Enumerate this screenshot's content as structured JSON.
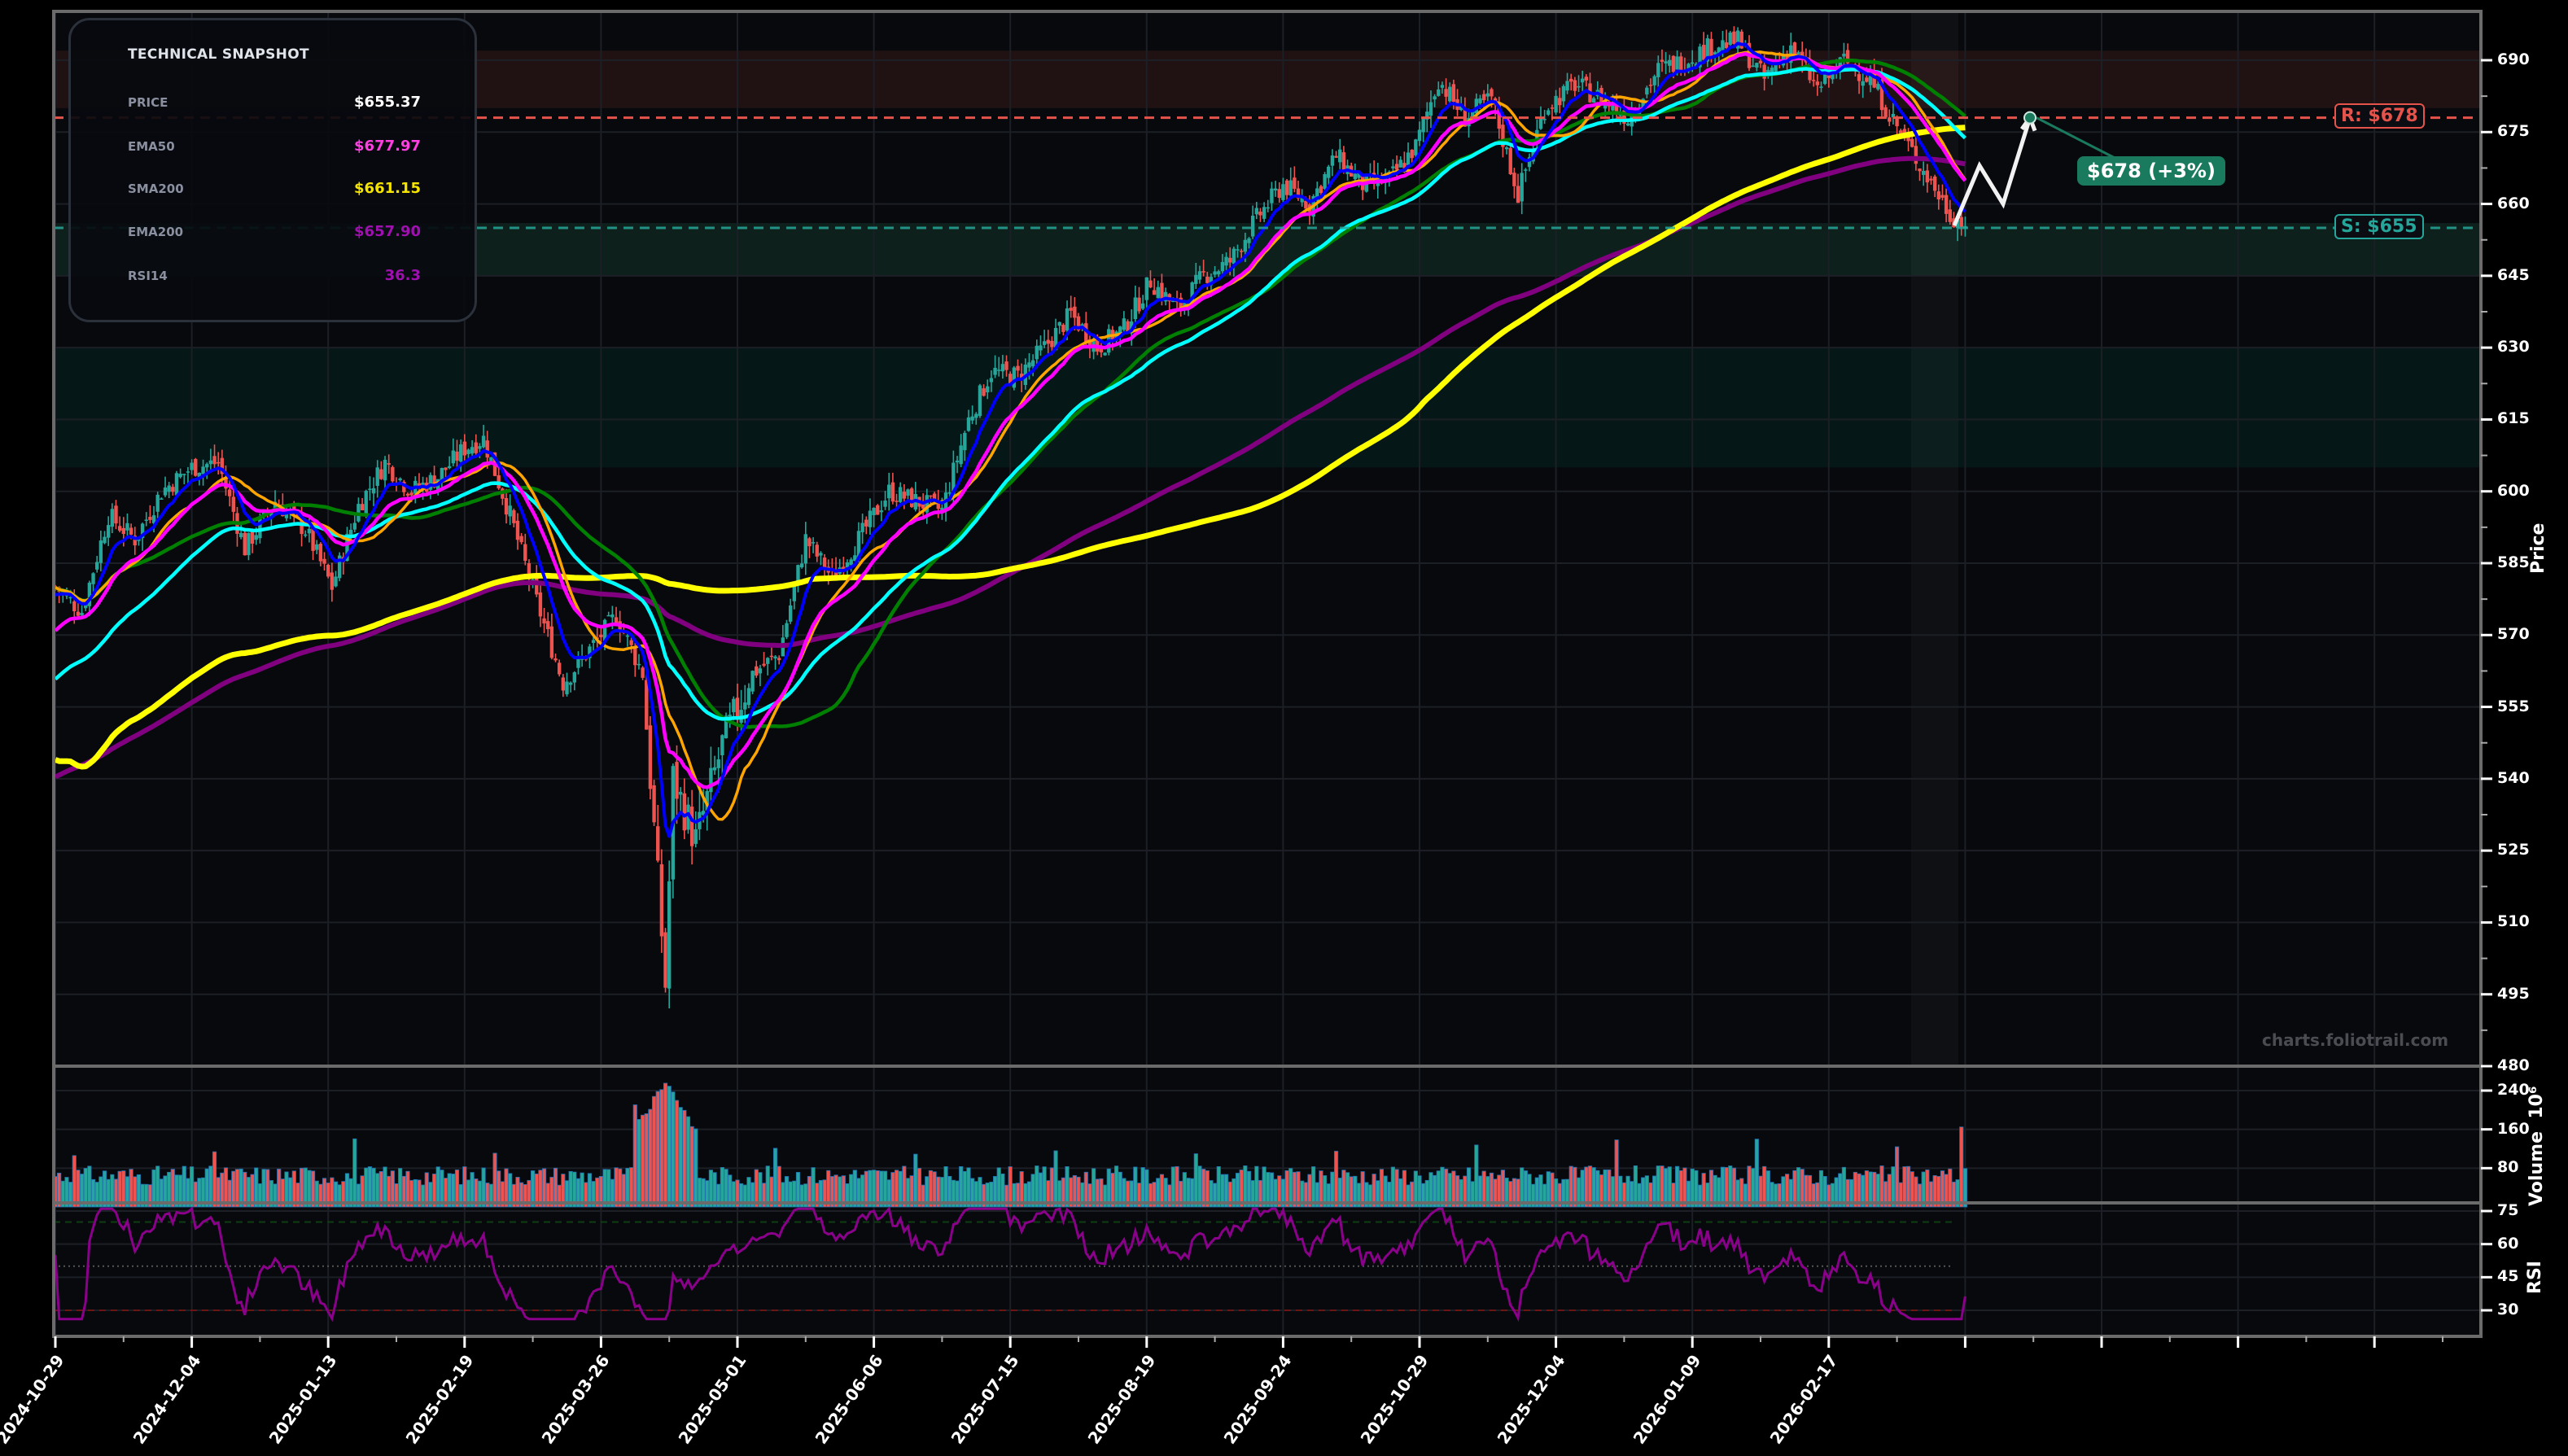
{
  "snapshot": {
    "title": "TECHNICAL SNAPSHOT",
    "rows": [
      {
        "label": "PRICE",
        "value": "$655.37",
        "color": "#ffffff"
      },
      {
        "label": "EMA50",
        "value": "$677.97",
        "color": "#ff40e0"
      },
      {
        "label": "SMA200",
        "value": "$661.15",
        "color": "#f5e400"
      },
      {
        "label": "EMA200",
        "value": "$657.90",
        "color": "#a010b0"
      },
      {
        "label": "RSI14",
        "value": "36.3",
        "color": "#a010b0"
      }
    ]
  },
  "levels": {
    "resistance": {
      "label": "R: $678",
      "value": 678,
      "color": "#e5534b"
    },
    "support": {
      "label": "S: $655",
      "value": 655,
      "color": "#26a69a"
    }
  },
  "target": {
    "label": "$678 (+3%)",
    "value": 678
  },
  "watermark": "charts.foliotrail.com",
  "axes": {
    "price_label": "Price",
    "volume_label": "Volume",
    "volume_exponent": "10⁶",
    "rsi_label": "RSI",
    "price_ticks": [
      "690",
      "675",
      "660",
      "645",
      "630",
      "615",
      "600",
      "585",
      "570",
      "555",
      "540",
      "525",
      "510",
      "495",
      "480"
    ],
    "volume_ticks": [
      "240",
      "160",
      "80"
    ],
    "rsi_ticks": [
      "75",
      "60",
      "45",
      "30"
    ],
    "x_ticks": [
      "2024-10-29",
      "2024-12-04",
      "2025-01-13",
      "2025-02-19",
      "2025-03-26",
      "2025-05-01",
      "2025-06-06",
      "2025-07-15",
      "2025-08-19",
      "2025-09-24",
      "2025-10-29",
      "2025-12-04",
      "2026-01-09",
      "2026-02-17"
    ]
  },
  "colors": {
    "up": "#26a69a",
    "down": "#ef5350",
    "ema9": "#0000ff",
    "ema21": "#ff00ff",
    "sma20": "#ffa500",
    "ema50": "#00ffff",
    "sma50": "#008000",
    "sma200": "#ffff00",
    "ema200": "#800080",
    "rsi": "#8b008b"
  },
  "chart_data": [
    {
      "type": "candlestick",
      "title": "Price",
      "ylabel": "Price",
      "ylim": [
        480,
        697
      ],
      "x_ticks": [
        "2024-10-29",
        "2024-12-04",
        "2025-01-13",
        "2025-02-19",
        "2025-03-26",
        "2025-05-01",
        "2025-06-06",
        "2025-07-15",
        "2025-08-19",
        "2025-09-24",
        "2025-10-29",
        "2025-12-04",
        "2026-01-09",
        "2026-02-17"
      ],
      "close_path": [
        [
          "2024-10-29",
          580
        ],
        [
          "2024-11-05",
          575
        ],
        [
          "2024-11-12",
          595
        ],
        [
          "2024-11-19",
          590
        ],
        [
          "2024-11-26",
          600
        ],
        [
          "2024-12-04",
          605
        ],
        [
          "2024-12-11",
          606
        ],
        [
          "2024-12-18",
          588
        ],
        [
          "2024-12-26",
          598
        ],
        [
          "2025-01-03",
          592
        ],
        [
          "2025-01-10",
          580
        ],
        [
          "2025-01-17",
          597
        ],
        [
          "2025-01-24",
          606
        ],
        [
          "2025-01-31",
          600
        ],
        [
          "2025-02-07",
          603
        ],
        [
          "2025-02-14",
          609
        ],
        [
          "2025-02-19",
          611
        ],
        [
          "2025-02-26",
          595
        ],
        [
          "2025-03-05",
          577
        ],
        [
          "2025-03-12",
          560
        ],
        [
          "2025-03-19",
          567
        ],
        [
          "2025-03-26",
          574
        ],
        [
          "2025-04-02",
          562
        ],
        [
          "2025-04-08",
          497
        ],
        [
          "2025-04-10",
          540
        ],
        [
          "2025-04-16",
          527
        ],
        [
          "2025-04-23",
          547
        ],
        [
          "2025-05-01",
          562
        ],
        [
          "2025-05-08",
          566
        ],
        [
          "2025-05-15",
          590
        ],
        [
          "2025-05-22",
          582
        ],
        [
          "2025-05-29",
          590
        ],
        [
          "2025-06-06",
          600
        ],
        [
          "2025-06-13",
          598
        ],
        [
          "2025-06-20",
          596
        ],
        [
          "2025-06-27",
          615
        ],
        [
          "2025-07-03",
          625
        ],
        [
          "2025-07-10",
          624
        ],
        [
          "2025-07-17",
          630
        ],
        [
          "2025-07-24",
          637
        ],
        [
          "2025-07-31",
          630
        ],
        [
          "2025-08-07",
          634
        ],
        [
          "2025-08-14",
          644
        ],
        [
          "2025-08-21",
          638
        ],
        [
          "2025-08-28",
          645
        ],
        [
          "2025-09-04",
          648
        ],
        [
          "2025-09-11",
          657
        ],
        [
          "2025-09-18",
          664
        ],
        [
          "2025-09-25",
          660
        ],
        [
          "2025-10-02",
          670
        ],
        [
          "2025-10-09",
          664
        ],
        [
          "2025-10-16",
          665
        ],
        [
          "2025-10-23",
          672
        ],
        [
          "2025-10-29",
          686
        ],
        [
          "2025-11-05",
          678
        ],
        [
          "2025-11-12",
          682
        ],
        [
          "2025-11-19",
          662
        ],
        [
          "2025-11-26",
          680
        ],
        [
          "2025-12-04",
          685
        ],
        [
          "2025-12-11",
          682
        ],
        [
          "2025-12-18",
          678
        ],
        [
          "2025-12-26",
          688
        ],
        [
          "2026-01-02",
          690
        ],
        [
          "2026-01-09",
          693
        ],
        [
          "2026-01-16",
          694
        ],
        [
          "2026-01-23",
          686
        ],
        [
          "2026-01-30",
          693
        ],
        [
          "2026-02-06",
          684
        ],
        [
          "2026-02-13",
          690
        ],
        [
          "2026-02-20",
          686
        ],
        [
          "2026-02-27",
          676
        ],
        [
          "2026-03-06",
          667
        ],
        [
          "2026-03-13",
          658
        ],
        [
          "2026-03-17",
          655.37
        ]
      ],
      "series": [
        {
          "name": "SMA200",
          "value_last": 661.15
        },
        {
          "name": "EMA50",
          "value_last": 677.97
        },
        {
          "name": "EMA200",
          "value_last": 657.9
        }
      ],
      "annotations": [
        {
          "type": "hline",
          "label": "R: $678",
          "y": 678,
          "style": "dashed"
        },
        {
          "type": "hline",
          "label": "S: $655",
          "y": 655,
          "style": "dashed"
        },
        {
          "type": "zone",
          "from": 680,
          "to": 692,
          "color": "resistance"
        },
        {
          "type": "zone",
          "from": 645,
          "to": 656,
          "color": "support"
        },
        {
          "type": "zone",
          "from": 605,
          "to": 630,
          "color": "support"
        },
        {
          "type": "projection",
          "label": "$678 (+3%)",
          "target": 678
        }
      ]
    },
    {
      "type": "bar",
      "title": "Volume",
      "ylabel": "Volume 10^6",
      "ylim": [
        0,
        260
      ],
      "y_ticks": [
        80,
        160,
        240
      ],
      "notes": "Typical daily volume 50-90M; spikes to ~250M around 2025-04-07/08"
    },
    {
      "type": "line",
      "title": "RSI",
      "ylabel": "RSI",
      "ylim": [
        25,
        78
      ],
      "y_ticks": [
        30,
        45,
        60,
        75
      ],
      "reference_lines": [
        70,
        50,
        30
      ],
      "last_value": 36.3
    }
  ]
}
